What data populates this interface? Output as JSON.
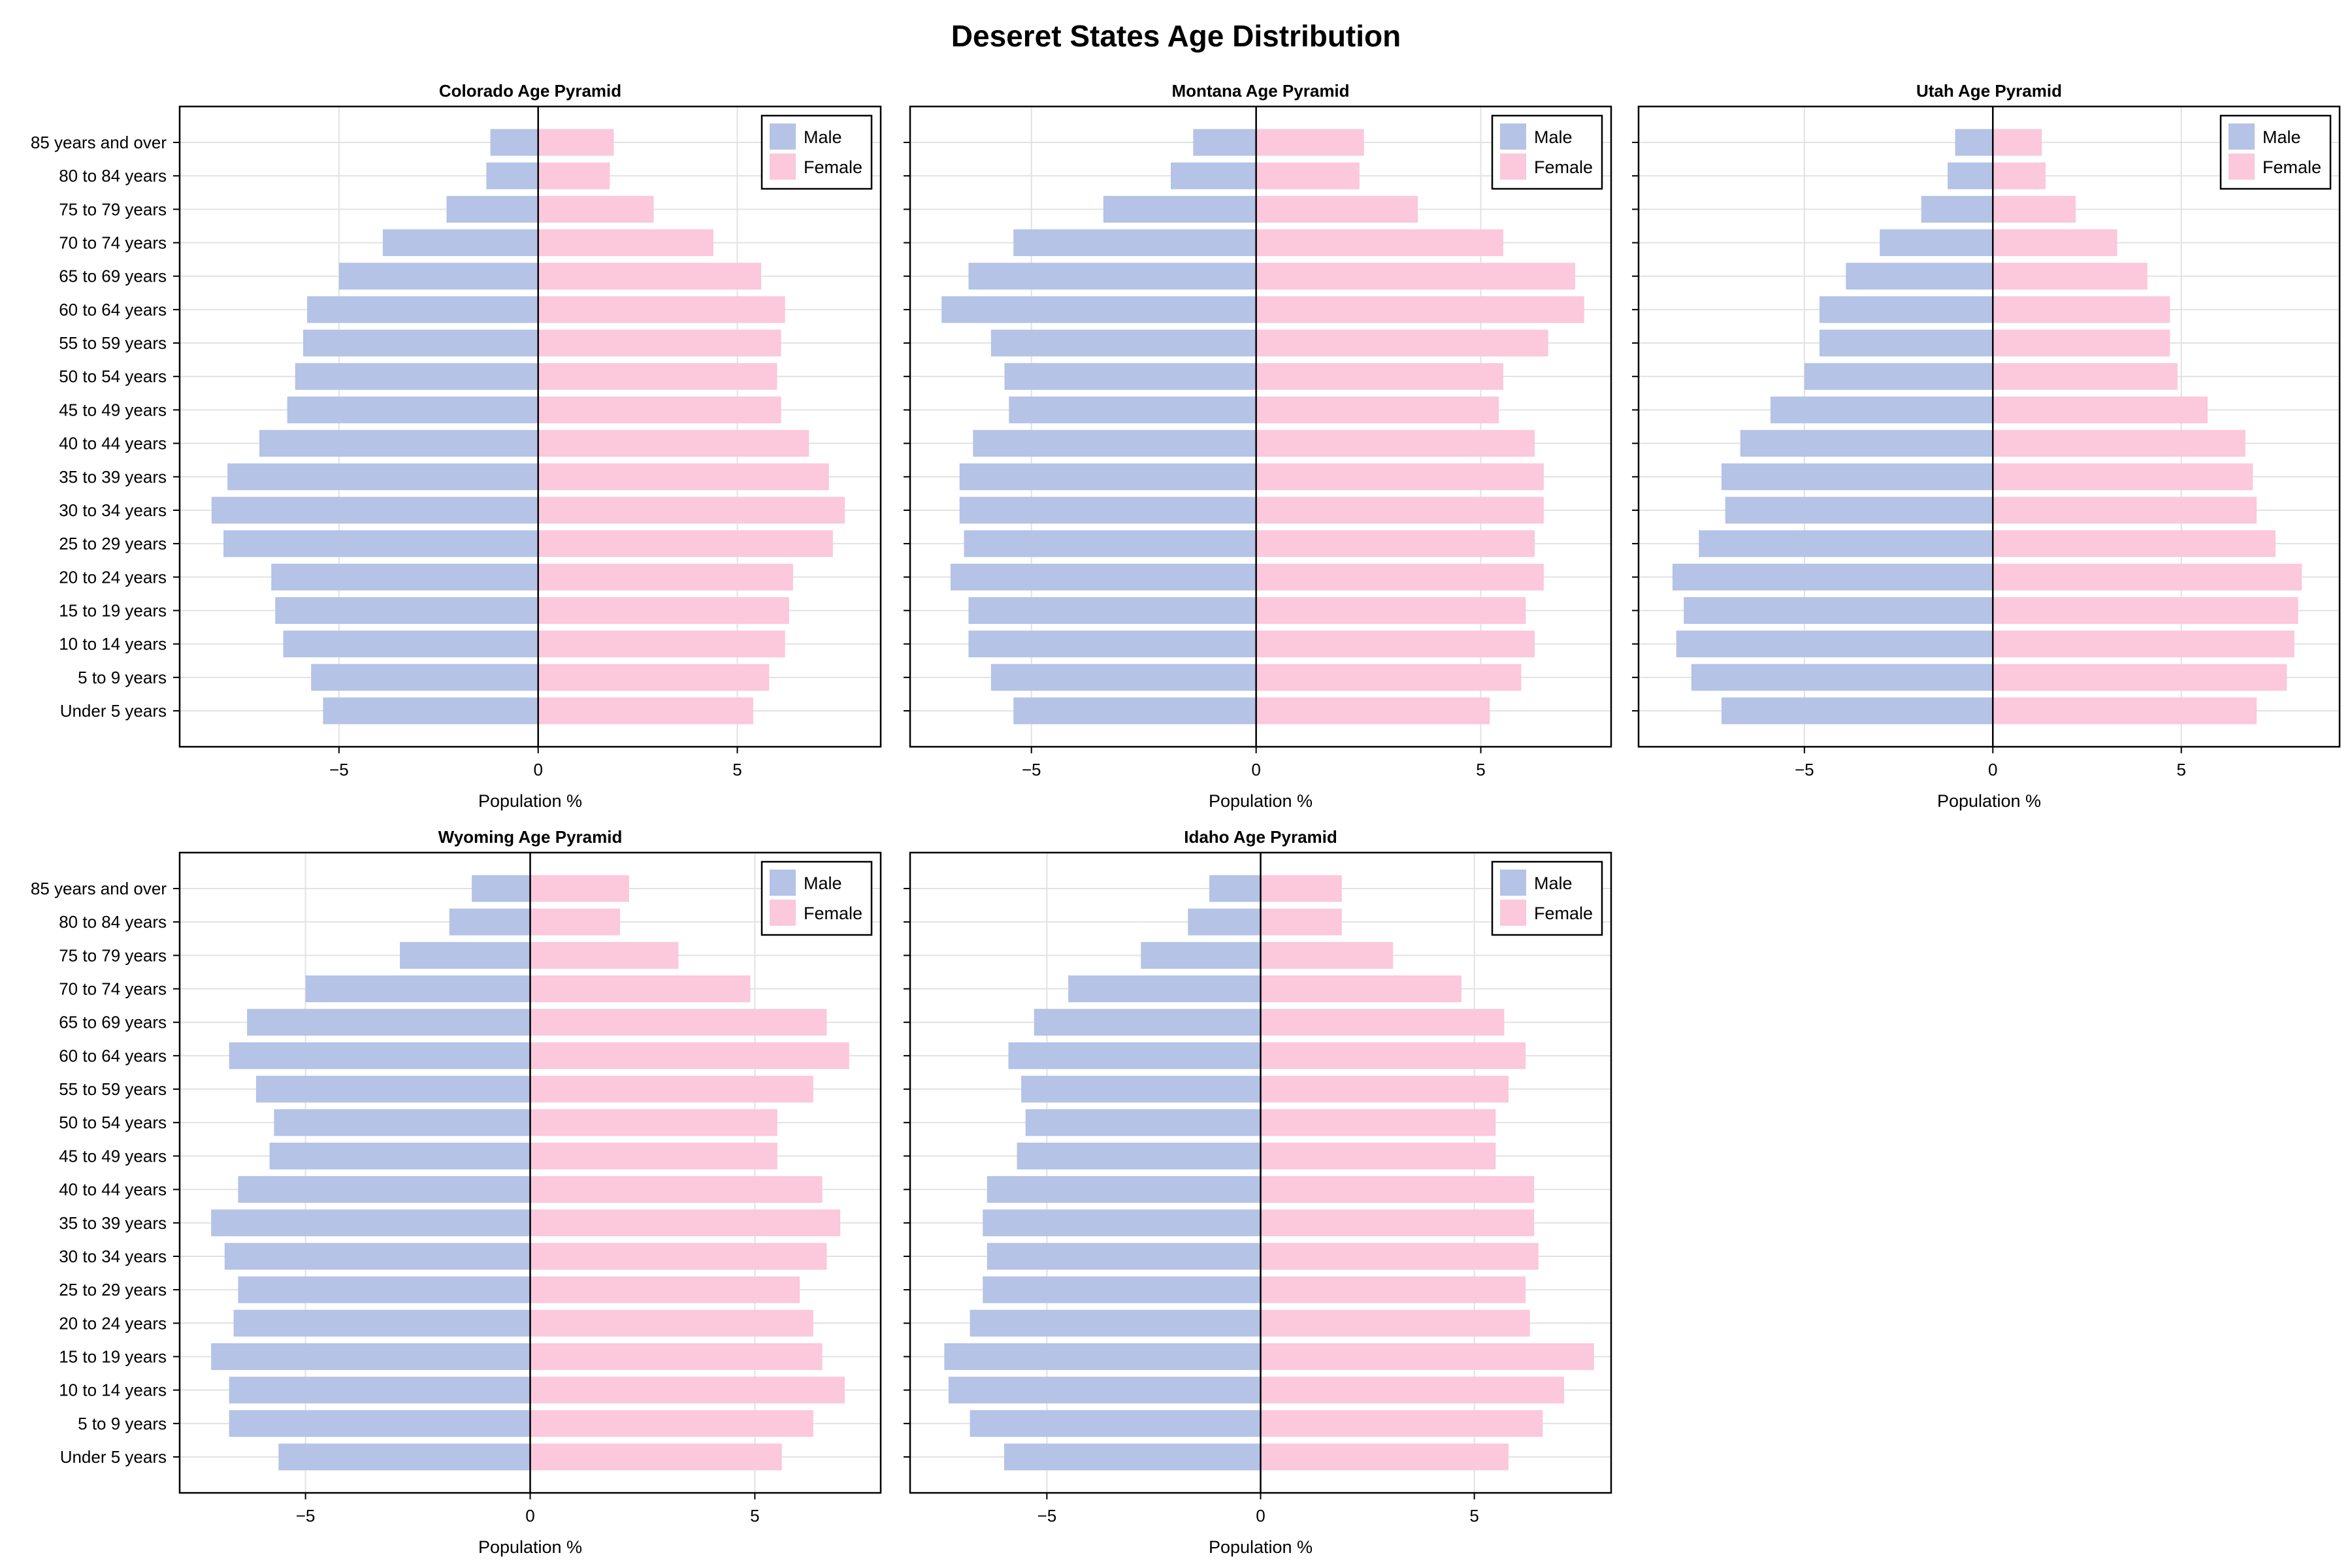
{
  "title": "Deseret States Age Distribution",
  "colors": {
    "male": "#b4c3e6",
    "female": "#fbc8dc"
  },
  "chart_data": [
    {
      "type": "bar",
      "orientation": "horizontal",
      "title": "Colorado Age Pyramid",
      "xlabel": "Population %",
      "xlim": [
        -9.0,
        8.6
      ],
      "xticks": [
        -5,
        0,
        5
      ],
      "xtick_labels": [
        "−5",
        "0",
        "5"
      ],
      "legend": [
        "Male",
        "Female"
      ],
      "legend_position": "top-right",
      "grid": true,
      "categories": [
        "85 years and over",
        "80 to 84 years",
        "75 to 79 years",
        "70 to 74 years",
        "65 to 69 years",
        "60 to 64 years",
        "55 to 59 years",
        "50 to 54 years",
        "45 to 49 years",
        "40 to 44 years",
        "35 to 39 years",
        "30 to 34 years",
        "25 to 29 years",
        "20 to 24 years",
        "15 to 19 years",
        "10 to 14 years",
        "5 to 9 years",
        "Under 5 years"
      ],
      "series": [
        {
          "name": "Male",
          "values": [
            -1.2,
            -1.3,
            -2.3,
            -3.9,
            -5.0,
            -5.8,
            -5.9,
            -6.1,
            -6.3,
            -7.0,
            -7.8,
            -8.2,
            -7.9,
            -6.7,
            -6.6,
            -6.4,
            -5.7,
            -5.4
          ]
        },
        {
          "name": "Female",
          "values": [
            1.9,
            1.8,
            2.9,
            4.4,
            5.6,
            6.2,
            6.1,
            6.0,
            6.1,
            6.8,
            7.3,
            7.7,
            7.4,
            6.4,
            6.3,
            6.2,
            5.8,
            5.4
          ]
        }
      ]
    },
    {
      "type": "bar",
      "orientation": "horizontal",
      "title": "Montana Age Pyramid",
      "xlabel": "Population %",
      "xlim": [
        -7.7,
        7.9
      ],
      "xticks": [
        -5,
        0,
        5
      ],
      "xtick_labels": [
        "−5",
        "0",
        "5"
      ],
      "legend": [
        "Male",
        "Female"
      ],
      "legend_position": "top-right",
      "grid": true,
      "categories": [
        "85 years and over",
        "80 to 84 years",
        "75 to 79 years",
        "70 to 74 years",
        "65 to 69 years",
        "60 to 64 years",
        "55 to 59 years",
        "50 to 54 years",
        "45 to 49 years",
        "40 to 44 years",
        "35 to 39 years",
        "30 to 34 years",
        "25 to 29 years",
        "20 to 24 years",
        "15 to 19 years",
        "10 to 14 years",
        "5 to 9 years",
        "Under 5 years"
      ],
      "series": [
        {
          "name": "Male",
          "values": [
            -1.4,
            -1.9,
            -3.4,
            -5.4,
            -6.4,
            -7.0,
            -5.9,
            -5.6,
            -5.5,
            -6.3,
            -6.6,
            -6.6,
            -6.5,
            -6.8,
            -6.4,
            -6.4,
            -5.9,
            -5.4
          ]
        },
        {
          "name": "Female",
          "values": [
            2.4,
            2.3,
            3.6,
            5.5,
            7.1,
            7.3,
            6.5,
            5.5,
            5.4,
            6.2,
            6.4,
            6.4,
            6.2,
            6.4,
            6.0,
            6.2,
            5.9,
            5.2
          ]
        }
      ]
    },
    {
      "type": "bar",
      "orientation": "horizontal",
      "title": "Utah Age Pyramid",
      "xlabel": "Population %",
      "xlim": [
        -9.4,
        9.2
      ],
      "xticks": [
        -5,
        0,
        5
      ],
      "xtick_labels": [
        "−5",
        "0",
        "5"
      ],
      "legend": [
        "Male",
        "Female"
      ],
      "legend_position": "top-right",
      "grid": true,
      "categories": [
        "85 years and over",
        "80 to 84 years",
        "75 to 79 years",
        "70 to 74 years",
        "65 to 69 years",
        "60 to 64 years",
        "55 to 59 years",
        "50 to 54 years",
        "45 to 49 years",
        "40 to 44 years",
        "35 to 39 years",
        "30 to 34 years",
        "25 to 29 years",
        "20 to 24 years",
        "15 to 19 years",
        "10 to 14 years",
        "5 to 9 years",
        "Under 5 years"
      ],
      "series": [
        {
          "name": "Male",
          "values": [
            -1.0,
            -1.2,
            -1.9,
            -3.0,
            -3.9,
            -4.6,
            -4.6,
            -5.0,
            -5.9,
            -6.7,
            -7.2,
            -7.1,
            -7.8,
            -8.5,
            -8.2,
            -8.4,
            -8.0,
            -7.2
          ]
        },
        {
          "name": "Female",
          "values": [
            1.3,
            1.4,
            2.2,
            3.3,
            4.1,
            4.7,
            4.7,
            4.9,
            5.7,
            6.7,
            6.9,
            7.0,
            7.5,
            8.2,
            8.1,
            8.0,
            7.8,
            7.0
          ]
        }
      ]
    },
    {
      "type": "bar",
      "orientation": "horizontal",
      "title": "Wyoming Age Pyramid",
      "xlabel": "Population %",
      "xlim": [
        -7.8,
        7.8
      ],
      "xticks": [
        -5,
        0,
        5
      ],
      "xtick_labels": [
        "−5",
        "0",
        "5"
      ],
      "legend": [
        "Male",
        "Female"
      ],
      "legend_position": "top-right",
      "grid": true,
      "categories": [
        "85 years and over",
        "80 to 84 years",
        "75 to 79 years",
        "70 to 74 years",
        "65 to 69 years",
        "60 to 64 years",
        "55 to 59 years",
        "50 to 54 years",
        "45 to 49 years",
        "40 to 44 years",
        "35 to 39 years",
        "30 to 34 years",
        "25 to 29 years",
        "20 to 24 years",
        "15 to 19 years",
        "10 to 14 years",
        "5 to 9 years",
        "Under 5 years"
      ],
      "series": [
        {
          "name": "Male",
          "values": [
            -1.3,
            -1.8,
            -2.9,
            -5.0,
            -6.3,
            -6.7,
            -6.1,
            -5.7,
            -5.8,
            -6.5,
            -7.1,
            -6.8,
            -6.5,
            -6.6,
            -7.1,
            -6.7,
            -6.7,
            -5.6
          ]
        },
        {
          "name": "Female",
          "values": [
            2.2,
            2.0,
            3.3,
            4.9,
            6.6,
            7.1,
            6.3,
            5.5,
            5.5,
            6.5,
            6.9,
            6.6,
            6.0,
            6.3,
            6.5,
            7.0,
            6.3,
            5.6
          ]
        }
      ]
    },
    {
      "type": "bar",
      "orientation": "horizontal",
      "title": "Idaho Age Pyramid",
      "xlabel": "Population %",
      "xlim": [
        -8.2,
        8.2
      ],
      "xticks": [
        -5,
        0,
        5
      ],
      "xtick_labels": [
        "−5",
        "0",
        "5"
      ],
      "legend": [
        "Male",
        "Female"
      ],
      "legend_position": "top-right",
      "grid": true,
      "categories": [
        "85 years and over",
        "80 to 84 years",
        "75 to 79 years",
        "70 to 74 years",
        "65 to 69 years",
        "60 to 64 years",
        "55 to 59 years",
        "50 to 54 years",
        "45 to 49 years",
        "40 to 44 years",
        "35 to 39 years",
        "30 to 34 years",
        "25 to 29 years",
        "20 to 24 years",
        "15 to 19 years",
        "10 to 14 years",
        "5 to 9 years",
        "Under 5 years"
      ],
      "series": [
        {
          "name": "Male",
          "values": [
            -1.2,
            -1.7,
            -2.8,
            -4.5,
            -5.3,
            -5.9,
            -5.6,
            -5.5,
            -5.7,
            -6.4,
            -6.5,
            -6.4,
            -6.5,
            -6.8,
            -7.4,
            -7.3,
            -6.8,
            -6.0
          ]
        },
        {
          "name": "Female",
          "values": [
            1.9,
            1.9,
            3.1,
            4.7,
            5.7,
            6.2,
            5.8,
            5.5,
            5.5,
            6.4,
            6.4,
            6.5,
            6.2,
            6.3,
            7.8,
            7.1,
            6.6,
            5.8
          ]
        }
      ]
    }
  ]
}
